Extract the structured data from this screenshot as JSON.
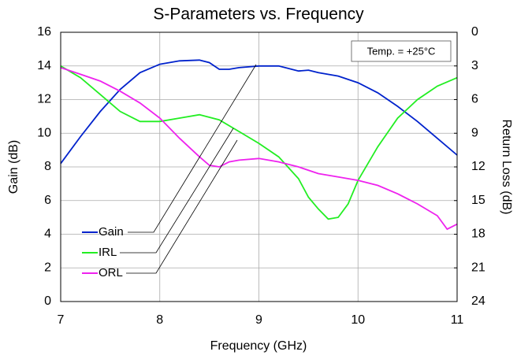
{
  "chart_data": {
    "type": "line",
    "title": "S-Parameters vs. Frequency",
    "x_label": "Frequency (GHz)",
    "y_label": "Gain (dB)",
    "y2_label": "Return Loss (dB)",
    "annotation": "Temp. = +25°C",
    "xlim": [
      7,
      11
    ],
    "xticks": [
      7,
      8,
      9,
      10,
      11
    ],
    "ylim": [
      0,
      16
    ],
    "yticks": [
      0,
      2,
      4,
      6,
      8,
      10,
      12,
      14,
      16
    ],
    "y2lim": [
      24,
      0
    ],
    "y2ticks": [
      0,
      3,
      6,
      9,
      12,
      15,
      18,
      21,
      24
    ],
    "grid": true,
    "legend": "lower left",
    "series": [
      {
        "name": "Gain",
        "color": "#0022cc",
        "x": [
          7.0,
          7.2,
          7.4,
          7.6,
          7.8,
          8.0,
          8.2,
          8.4,
          8.5,
          8.6,
          8.7,
          8.8,
          9.0,
          9.2,
          9.4,
          9.5,
          9.6,
          9.8,
          10.0,
          10.2,
          10.4,
          10.6,
          10.8,
          11.0
        ],
        "values": [
          8.2,
          9.8,
          11.3,
          12.6,
          13.6,
          14.1,
          14.3,
          14.35,
          14.2,
          13.8,
          13.8,
          13.9,
          14.0,
          14.0,
          13.7,
          13.75,
          13.6,
          13.4,
          13.0,
          12.4,
          11.6,
          10.7,
          9.7,
          8.7
        ]
      },
      {
        "name": "IRL",
        "color": "#22ee22",
        "axis": "y2",
        "x": [
          7.0,
          7.2,
          7.4,
          7.6,
          7.8,
          8.0,
          8.2,
          8.4,
          8.6,
          8.8,
          9.0,
          9.2,
          9.4,
          9.5,
          9.6,
          9.7,
          9.8,
          9.9,
          10.0,
          10.2,
          10.4,
          10.6,
          10.8,
          11.0
        ],
        "values": [
          3.0,
          4.05,
          5.55,
          7.05,
          7.95,
          7.95,
          7.65,
          7.35,
          7.8,
          8.85,
          9.9,
          11.1,
          13.05,
          14.7,
          15.75,
          16.65,
          16.5,
          15.3,
          13.2,
          10.2,
          7.65,
          6.0,
          4.8,
          4.05
        ]
      },
      {
        "name": "ORL",
        "color": "#ee22ee",
        "axis": "y2",
        "x": [
          7.0,
          7.2,
          7.4,
          7.6,
          7.8,
          8.0,
          8.2,
          8.4,
          8.5,
          8.6,
          8.7,
          8.8,
          9.0,
          9.2,
          9.4,
          9.6,
          9.8,
          10.0,
          10.2,
          10.4,
          10.6,
          10.8,
          10.9,
          11.0
        ],
        "values": [
          3.15,
          3.75,
          4.35,
          5.25,
          6.3,
          7.65,
          9.45,
          11.1,
          11.85,
          12.0,
          11.55,
          11.4,
          11.25,
          11.55,
          12.0,
          12.6,
          12.9,
          13.2,
          13.65,
          14.4,
          15.3,
          16.35,
          17.55,
          17.1
        ]
      }
    ]
  }
}
